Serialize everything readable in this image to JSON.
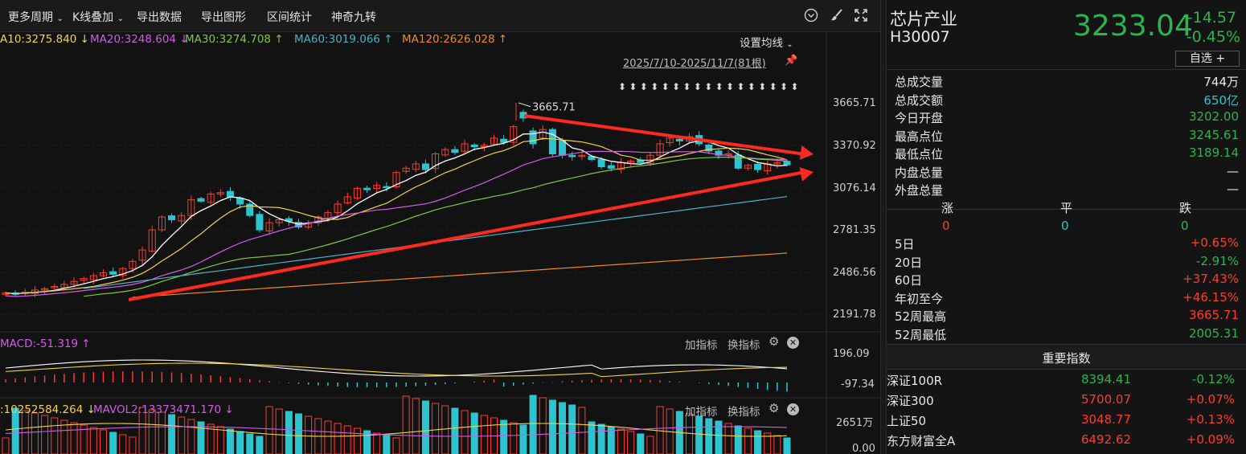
{
  "toolbar": {
    "more_period": "更多周期",
    "kline_overlay": "K线叠加",
    "export_data": "导出数据",
    "export_chart": "导出图形",
    "interval_stats": "区间统计",
    "magic_nine": "神奇九转"
  },
  "ma_legend": {
    "ma10": "A10:3275.840 ↓",
    "ma20": "MA20:3248.604 ↓",
    "ma30": "MA30:3274.708 ↑",
    "ma60": "MA60:3019.066 ↑",
    "ma120": "MA120:2626.028 ↑",
    "settings": "设置均线"
  },
  "date_range": "2025/7/10-2025/11/7(81根)",
  "peak_label": "3665.71",
  "price_axis": [
    "3665.71",
    "3370.92",
    "3076.14",
    "2781.35",
    "2486.56",
    "2191.78"
  ],
  "macd": {
    "label": "MACD:-51.319 ↑",
    "axis": [
      "196.09",
      "-97.34"
    ],
    "add_indicator": "加指标",
    "switch_indicator": "换指标"
  },
  "vol": {
    "mavol1": ":10252584.264 ↓",
    "mavol2": "MAVOL2:13373471.170 ↓",
    "axis": [
      "2651万",
      "0.00"
    ],
    "add_indicator": "加指标",
    "switch_indicator": "换指标"
  },
  "colors": {
    "up": "#ff3b30",
    "down": "#2ec4cf",
    "ma5": "#ffffff",
    "ma10": "#f3d34a",
    "ma20": "#d35be8",
    "ma30": "#7fc93f",
    "ma60": "#49b2c7",
    "ma120": "#f08a24"
  },
  "quote": {
    "name": "芯片产业",
    "code": "H30007",
    "price": "3233.04",
    "change": "-14.57",
    "change_pct": "-0.45%",
    "watchlist": "自选 +"
  },
  "stats": [
    {
      "label": "总成交量",
      "value": "744万",
      "color": "white"
    },
    {
      "label": "总成交额",
      "value": "650亿",
      "color": "cyan"
    },
    {
      "label": "今日开盘",
      "value": "3202.00",
      "color": "green"
    },
    {
      "label": "最高点位",
      "value": "3245.61",
      "color": "green"
    },
    {
      "label": "最低点位",
      "value": "3189.14",
      "color": "green"
    },
    {
      "label": "内盘总量",
      "value": "—",
      "color": "white"
    },
    {
      "label": "外盘总量",
      "value": "—",
      "color": "white"
    }
  ],
  "breadth": {
    "up_label": "涨",
    "flat_label": "平",
    "down_label": "跌",
    "up": "0",
    "flat": "0",
    "down": "0"
  },
  "periods": [
    {
      "label": "5日",
      "value": "+0.65%",
      "color": "red"
    },
    {
      "label": "20日",
      "value": "-2.91%",
      "color": "green"
    },
    {
      "label": "60日",
      "value": "+37.43%",
      "color": "red"
    },
    {
      "label": "年初至今",
      "value": "+46.15%",
      "color": "red"
    },
    {
      "label": "52周最高",
      "value": "3665.71",
      "color": "red"
    },
    {
      "label": "52周最低",
      "value": "2005.31",
      "color": "green"
    }
  ],
  "index_header": "重要指数",
  "indices": [
    {
      "name": "深证100R",
      "value": "8394.41",
      "pct": "-0.12%",
      "color": "green"
    },
    {
      "name": "深证300",
      "value": "5700.07",
      "pct": "+0.07%",
      "color": "red"
    },
    {
      "name": "上证50",
      "value": "3048.77",
      "pct": "+0.13%",
      "color": "red"
    },
    {
      "name": "东方财富全A",
      "value": "6492.62",
      "pct": "+0.09%",
      "color": "red"
    }
  ]
}
